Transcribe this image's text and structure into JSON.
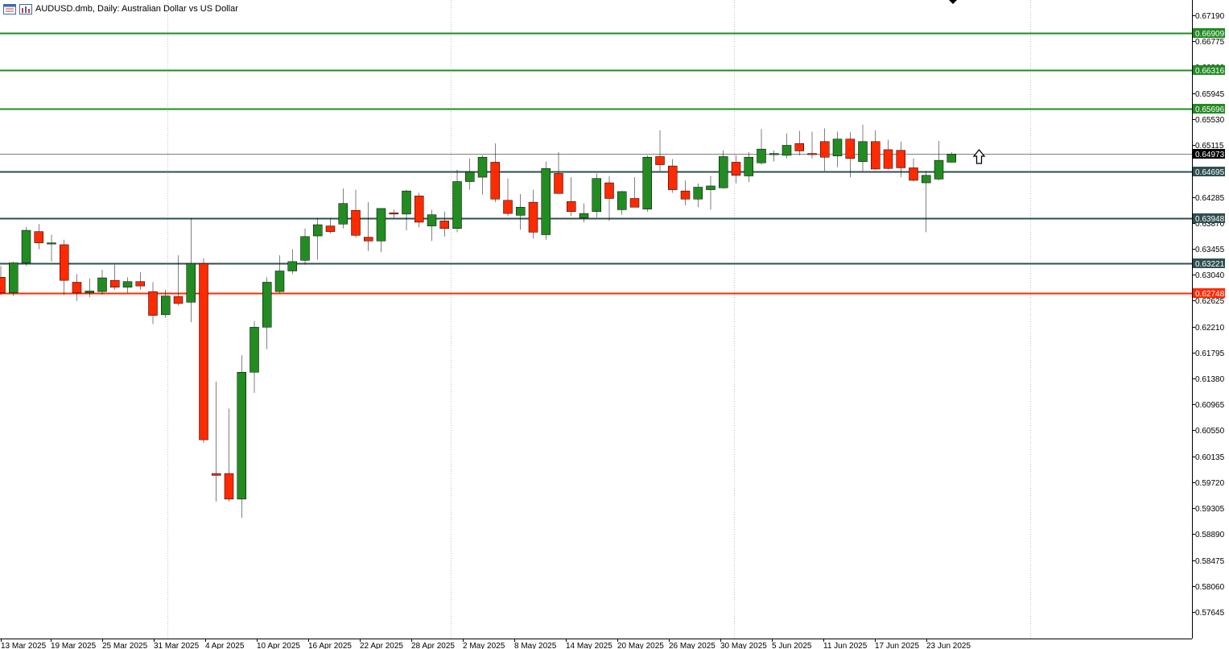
{
  "header": {
    "title": "AUDUSD.dmb, Daily:  Australian Dollar vs US Dollar",
    "icons": [
      "chart-window-icon",
      "bar-chart-icon"
    ]
  },
  "colors": {
    "bull": "#228b22",
    "bear": "#ff2a00",
    "support_line": "#2f4f4f",
    "resistance_line": "#228b22",
    "current_price_line": "#ff2a00",
    "grid": "#c0c0c0"
  },
  "chart_data": {
    "type": "candlestick",
    "symbol": "AUDUSD.dmb",
    "timeframe": "Daily",
    "description": "Australian Dollar vs US Dollar",
    "ylim": [
      0.5745,
      0.6732
    ],
    "y_ticks": [
      "0.67190",
      "0.66775",
      "0.66360",
      "0.65945",
      "0.65530",
      "0.65115",
      "0.64700",
      "0.64285",
      "0.63870",
      "0.63455",
      "0.63040",
      "0.62625",
      "0.62210",
      "0.61795",
      "0.61380",
      "0.60965",
      "0.60550",
      "0.60135",
      "0.59720",
      "0.59305",
      "0.58890",
      "0.58475",
      "0.58060",
      "0.57645"
    ],
    "x_labels": [
      "13 Mar 2025",
      "19 Mar 2025",
      "25 Mar 2025",
      "31 Mar 2025",
      "4 Apr 2025",
      "10 Apr 2025",
      "16 Apr 2025",
      "22 Apr 2025",
      "28 Apr 2025",
      "2 May 2025",
      "8 May 2025",
      "14 May 2025",
      "20 May 2025",
      "26 May 2025",
      "30 May 2025",
      "5 Jun 2025",
      "11 Jun 2025",
      "17 Jun 2025",
      "23 Jun 2025"
    ],
    "horizontal_levels": [
      {
        "price": 0.66909,
        "label": "0.66909",
        "kind": "resistance"
      },
      {
        "price": 0.66316,
        "label": "0.66316",
        "kind": "resistance"
      },
      {
        "price": 0.65696,
        "label": "0.65696",
        "kind": "resistance"
      },
      {
        "price": 0.64973,
        "label": "0.64973",
        "kind": "current"
      },
      {
        "price": 0.64695,
        "label": "0.64695",
        "kind": "support"
      },
      {
        "price": 0.63948,
        "label": "0.63948",
        "kind": "support"
      },
      {
        "price": 0.63221,
        "label": "0.63221",
        "kind": "support"
      },
      {
        "price": 0.62748,
        "label": "0.62748",
        "kind": "entry"
      }
    ],
    "candles": [
      {
        "date": "12 Mar 2025",
        "o": 0.63,
        "h": 0.6318,
        "l": 0.6272,
        "c": 0.6275
      },
      {
        "date": "13 Mar 2025",
        "o": 0.6275,
        "h": 0.6325,
        "l": 0.627,
        "c": 0.6323
      },
      {
        "date": "14 Mar 2025",
        "o": 0.6323,
        "h": 0.638,
        "l": 0.6318,
        "c": 0.6375
      },
      {
        "date": "17 Mar 2025",
        "o": 0.6373,
        "h": 0.6385,
        "l": 0.6345,
        "c": 0.6355
      },
      {
        "date": "18 Mar 2025",
        "o": 0.6355,
        "h": 0.6368,
        "l": 0.6325,
        "c": 0.6355
      },
      {
        "date": "19 Mar 2025",
        "o": 0.6352,
        "h": 0.636,
        "l": 0.6272,
        "c": 0.6295
      },
      {
        "date": "20 Mar 2025",
        "o": 0.6292,
        "h": 0.6305,
        "l": 0.6262,
        "c": 0.6275
      },
      {
        "date": "21 Mar 2025",
        "o": 0.6275,
        "h": 0.6298,
        "l": 0.6268,
        "c": 0.6278
      },
      {
        "date": "24 Mar 2025",
        "o": 0.6277,
        "h": 0.6312,
        "l": 0.6272,
        "c": 0.6299
      },
      {
        "date": "25 Mar 2025",
        "o": 0.6295,
        "h": 0.632,
        "l": 0.628,
        "c": 0.6284
      },
      {
        "date": "26 Mar 2025",
        "o": 0.6284,
        "h": 0.63,
        "l": 0.6275,
        "c": 0.6293
      },
      {
        "date": "27 Mar 2025",
        "o": 0.6293,
        "h": 0.6308,
        "l": 0.628,
        "c": 0.6286
      },
      {
        "date": "28 Mar 2025",
        "o": 0.6277,
        "h": 0.6292,
        "l": 0.6225,
        "c": 0.6239
      },
      {
        "date": "31 Mar 2025",
        "o": 0.624,
        "h": 0.628,
        "l": 0.6235,
        "c": 0.627
      },
      {
        "date": "1 Apr 2025",
        "o": 0.6269,
        "h": 0.6335,
        "l": 0.6255,
        "c": 0.6258
      },
      {
        "date": "2 Apr 2025",
        "o": 0.626,
        "h": 0.6395,
        "l": 0.6228,
        "c": 0.6322
      },
      {
        "date": "3 Apr 2025",
        "o": 0.6322,
        "h": 0.633,
        "l": 0.6035,
        "c": 0.604
      },
      {
        "date": "4 Apr 2025",
        "o": 0.5986,
        "h": 0.6133,
        "l": 0.5941,
        "c": 0.5983
      },
      {
        "date": "7 Apr 2025",
        "o": 0.5986,
        "h": 0.609,
        "l": 0.5941,
        "c": 0.5945
      },
      {
        "date": "8 Apr 2025",
        "o": 0.5945,
        "h": 0.6175,
        "l": 0.5915,
        "c": 0.6148
      },
      {
        "date": "9 Apr 2025",
        "o": 0.6148,
        "h": 0.623,
        "l": 0.6115,
        "c": 0.622
      },
      {
        "date": "10 Apr 2025",
        "o": 0.622,
        "h": 0.63,
        "l": 0.6185,
        "c": 0.6292
      },
      {
        "date": "11 Apr 2025",
        "o": 0.6277,
        "h": 0.6335,
        "l": 0.6275,
        "c": 0.631
      },
      {
        "date": "14 Apr 2025",
        "o": 0.631,
        "h": 0.6345,
        "l": 0.6305,
        "c": 0.6325
      },
      {
        "date": "15 Apr 2025",
        "o": 0.6327,
        "h": 0.6378,
        "l": 0.632,
        "c": 0.6365
      },
      {
        "date": "16 Apr 2025",
        "o": 0.6366,
        "h": 0.6395,
        "l": 0.6328,
        "c": 0.6384
      },
      {
        "date": "17 Apr 2025",
        "o": 0.6382,
        "h": 0.6395,
        "l": 0.637,
        "c": 0.6373
      },
      {
        "date": "18 Apr 2025",
        "o": 0.6385,
        "h": 0.6442,
        "l": 0.6378,
        "c": 0.6418
      },
      {
        "date": "21 Apr 2025",
        "o": 0.6407,
        "h": 0.644,
        "l": 0.6363,
        "c": 0.6367
      },
      {
        "date": "22 Apr 2025",
        "o": 0.6364,
        "h": 0.642,
        "l": 0.6342,
        "c": 0.6358
      },
      {
        "date": "23 Apr 2025",
        "o": 0.6358,
        "h": 0.641,
        "l": 0.634,
        "c": 0.641
      },
      {
        "date": "24 Apr 2025",
        "o": 0.6403,
        "h": 0.6408,
        "l": 0.6395,
        "c": 0.6401
      },
      {
        "date": "25 Apr 2025",
        "o": 0.6401,
        "h": 0.644,
        "l": 0.6375,
        "c": 0.6438
      },
      {
        "date": "28 Apr 2025",
        "o": 0.643,
        "h": 0.6435,
        "l": 0.638,
        "c": 0.6388
      },
      {
        "date": "29 Apr 2025",
        "o": 0.6382,
        "h": 0.6408,
        "l": 0.6358,
        "c": 0.64
      },
      {
        "date": "30 Apr 2025",
        "o": 0.639,
        "h": 0.6405,
        "l": 0.6365,
        "c": 0.6378
      },
      {
        "date": "1 May 2025",
        "o": 0.6378,
        "h": 0.6472,
        "l": 0.6372,
        "c": 0.6453
      },
      {
        "date": "2 May 2025",
        "o": 0.6453,
        "h": 0.649,
        "l": 0.644,
        "c": 0.6468
      },
      {
        "date": "5 May 2025",
        "o": 0.646,
        "h": 0.6495,
        "l": 0.6432,
        "c": 0.6492
      },
      {
        "date": "6 May 2025",
        "o": 0.6484,
        "h": 0.6514,
        "l": 0.642,
        "c": 0.6425
      },
      {
        "date": "7 May 2025",
        "o": 0.6423,
        "h": 0.6458,
        "l": 0.6398,
        "c": 0.6402
      },
      {
        "date": "8 May 2025",
        "o": 0.6399,
        "h": 0.6433,
        "l": 0.6376,
        "c": 0.6412
      },
      {
        "date": "9 May 2025",
        "o": 0.642,
        "h": 0.644,
        "l": 0.6362,
        "c": 0.6372
      },
      {
        "date": "12 May 2025",
        "o": 0.6368,
        "h": 0.6485,
        "l": 0.636,
        "c": 0.6474
      },
      {
        "date": "13 May 2025",
        "o": 0.6466,
        "h": 0.65,
        "l": 0.6436,
        "c": 0.6434
      },
      {
        "date": "14 May 2025",
        "o": 0.6421,
        "h": 0.646,
        "l": 0.6398,
        "c": 0.6405
      },
      {
        "date": "15 May 2025",
        "o": 0.6395,
        "h": 0.6418,
        "l": 0.6388,
        "c": 0.6402
      },
      {
        "date": "16 May 2025",
        "o": 0.6405,
        "h": 0.6466,
        "l": 0.6396,
        "c": 0.6458
      },
      {
        "date": "17 May 2025",
        "o": 0.6451,
        "h": 0.6462,
        "l": 0.639,
        "c": 0.6426
      },
      {
        "date": "19 May 2025",
        "o": 0.6408,
        "h": 0.6438,
        "l": 0.64,
        "c": 0.6437
      },
      {
        "date": "20 May 2025",
        "o": 0.6426,
        "h": 0.646,
        "l": 0.6414,
        "c": 0.6412
      },
      {
        "date": "21 May 2025",
        "o": 0.6409,
        "h": 0.6495,
        "l": 0.6405,
        "c": 0.6492
      },
      {
        "date": "22 May 2025",
        "o": 0.6493,
        "h": 0.6535,
        "l": 0.647,
        "c": 0.648
      },
      {
        "date": "23 May 2025",
        "o": 0.6478,
        "h": 0.6489,
        "l": 0.6435,
        "c": 0.644
      },
      {
        "date": "26 May 2025",
        "o": 0.6438,
        "h": 0.6455,
        "l": 0.6415,
        "c": 0.6425
      },
      {
        "date": "27 May 2025",
        "o": 0.6425,
        "h": 0.645,
        "l": 0.6412,
        "c": 0.6444
      },
      {
        "date": "28 May 2025",
        "o": 0.644,
        "h": 0.6462,
        "l": 0.6408,
        "c": 0.6446
      },
      {
        "date": "29 May 2025",
        "o": 0.6443,
        "h": 0.6503,
        "l": 0.6442,
        "c": 0.6493
      },
      {
        "date": "30 May 2025",
        "o": 0.6484,
        "h": 0.6495,
        "l": 0.645,
        "c": 0.6463
      },
      {
        "date": "2 Jun 2025",
        "o": 0.6462,
        "h": 0.65,
        "l": 0.6452,
        "c": 0.6492
      },
      {
        "date": "3 Jun 2025",
        "o": 0.6483,
        "h": 0.6537,
        "l": 0.648,
        "c": 0.6505
      },
      {
        "date": "4 Jun 2025",
        "o": 0.6496,
        "h": 0.6503,
        "l": 0.6485,
        "c": 0.6498
      },
      {
        "date": "5 Jun 2025",
        "o": 0.6495,
        "h": 0.653,
        "l": 0.649,
        "c": 0.6511
      },
      {
        "date": "6 Jun 2025",
        "o": 0.6514,
        "h": 0.6534,
        "l": 0.6495,
        "c": 0.6502
      },
      {
        "date": "9 Jun 2025",
        "o": 0.6498,
        "h": 0.6533,
        "l": 0.649,
        "c": 0.6497
      },
      {
        "date": "10 Jun 2025",
        "o": 0.6517,
        "h": 0.6538,
        "l": 0.647,
        "c": 0.6492
      },
      {
        "date": "11 Jun 2025",
        "o": 0.6494,
        "h": 0.6533,
        "l": 0.6476,
        "c": 0.6521
      },
      {
        "date": "12 Jun 2025",
        "o": 0.6521,
        "h": 0.6532,
        "l": 0.646,
        "c": 0.649
      },
      {
        "date": "13 Jun 2025",
        "o": 0.6485,
        "h": 0.6544,
        "l": 0.647,
        "c": 0.6517
      },
      {
        "date": "16 Jun 2025",
        "o": 0.6517,
        "h": 0.6535,
        "l": 0.6472,
        "c": 0.6473
      },
      {
        "date": "17 Jun 2025",
        "o": 0.6504,
        "h": 0.652,
        "l": 0.6472,
        "c": 0.6474
      },
      {
        "date": "18 Jun 2025",
        "o": 0.6503,
        "h": 0.6517,
        "l": 0.646,
        "c": 0.6475
      },
      {
        "date": "19 Jun 2025",
        "o": 0.6475,
        "h": 0.649,
        "l": 0.6453,
        "c": 0.6455
      },
      {
        "date": "20 Jun 2025",
        "o": 0.6451,
        "h": 0.647,
        "l": 0.6372,
        "c": 0.6463
      },
      {
        "date": "23 Jun 2025",
        "o": 0.6457,
        "h": 0.6518,
        "l": 0.6455,
        "c": 0.6487
      },
      {
        "date": "24 Jun 2025",
        "o": 0.6484,
        "h": 0.65,
        "l": 0.6483,
        "c": 0.6497
      }
    ]
  }
}
